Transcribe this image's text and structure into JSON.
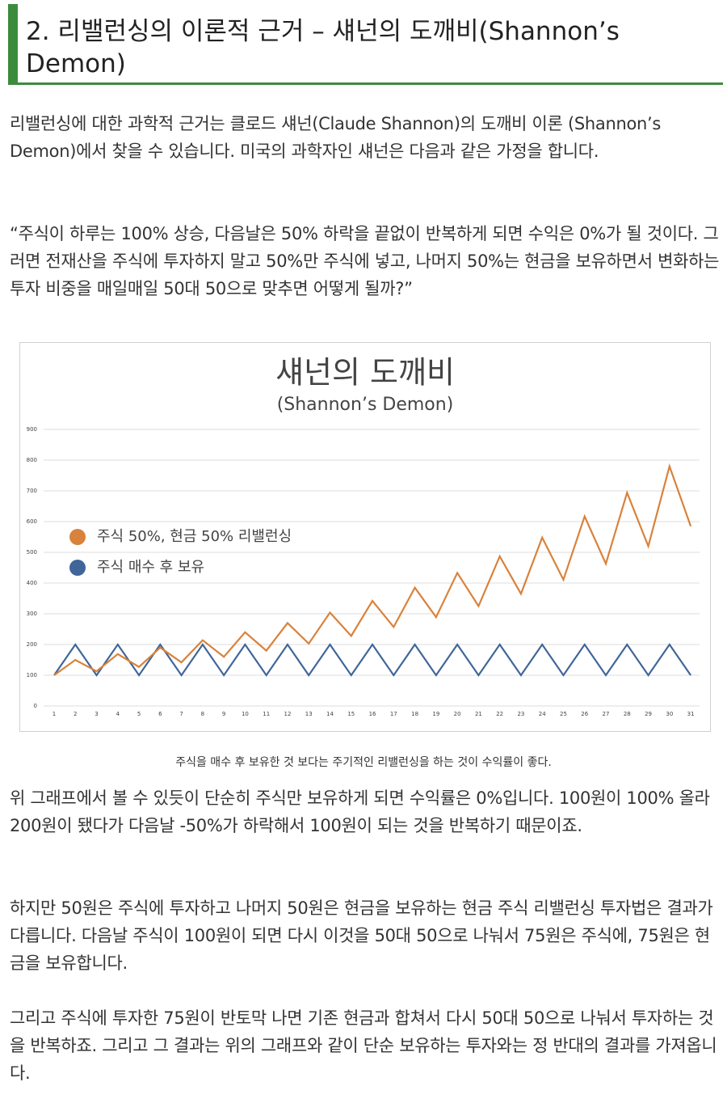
{
  "header": {
    "title": "2. 리밸런싱의 이론적 근거 – 섀넌의 도깨비(Shannon’s Demon)"
  },
  "paragraphs": [
    "리밸런싱에 대한 과학적 근거는 클로드 섀넌(Claude Shannon)의 도깨비 이론 (Shannon’s Demon)에서 찾을 수 있습니다. 미국의 과학자인 섀넌은  다음과 같은 가정을 합니다.",
    "“주식이 하루는 100% 상승, 다음날은 50% 하락을 끝없이 반복하게 되면 수익은 0%가 될 것이다. 그러면 전재산을 주식에 투자하지 말고 50%만 주식에 넣고, 나머지 50%는 현금을 보유하면서 변화하는 투자 비중을 매일매일 50대 50으로 맞추면 어떻게 될까?”"
  ],
  "chart_data": {
    "type": "line",
    "title": "섀넌의 도깨비",
    "subtitle": "(Shannon’s Demon)",
    "categories": [
      "1",
      "2",
      "3",
      "4",
      "5",
      "6",
      "7",
      "8",
      "9",
      "10",
      "11",
      "12",
      "13",
      "14",
      "15",
      "16",
      "17",
      "18",
      "19",
      "20",
      "21",
      "22",
      "23",
      "24",
      "25",
      "26",
      "27",
      "28",
      "29",
      "30",
      "31"
    ],
    "series": [
      {
        "name": "주식 50%, 현금 50% 리밸런싱",
        "color": "#d9823b",
        "values": [
          100,
          150,
          113,
          169,
          127,
          190,
          142,
          214,
          160,
          240,
          180,
          270,
          203,
          304,
          228,
          342,
          257,
          385,
          289,
          433,
          325,
          487,
          365,
          548,
          411,
          617,
          463,
          694,
          520,
          780,
          585
        ]
      },
      {
        "name": "주식 매수 후 보유",
        "color": "#3f6599",
        "values": [
          100,
          200,
          100,
          200,
          100,
          200,
          100,
          200,
          100,
          200,
          100,
          200,
          100,
          200,
          100,
          200,
          100,
          200,
          100,
          200,
          100,
          200,
          100,
          200,
          100,
          200,
          100,
          200,
          100,
          200,
          100
        ]
      }
    ],
    "ylim": [
      0,
      900
    ],
    "yticks": [
      0,
      100,
      200,
      300,
      400,
      500,
      600,
      700,
      800,
      900
    ],
    "grid": true,
    "legend": "left"
  },
  "caption": "주식을 매수 후 보유한 것 보다는 주기적인 리밸런싱을 하는 것이 수익률이 좋다.",
  "paragraphs_after": [
    "위 그래프에서 볼 수 있듯이 단순히 주식만 보유하게 되면 수익률은 0%입니다. 100원이 100% 올라 200원이 됐다가 다음날 -50%가 하락해서 100원이 되는 것을 반복하기 때문이죠.",
    "하지만 50원은 주식에 투자하고 나머지 50원은 현금을 보유하는 현금 주식 리밸런싱 투자법은 결과가 다릅니다. 다음날 주식이 100원이 되면 다시 이것을 50대 50으로 나눠서 75원은 주식에, 75원은 현금을 보유합니다.",
    "그리고 주식에 투자한 75원이 반토막 나면 기존 현금과 합쳐서 다시 50대 50으로 나눠서 투자하는 것을 반복하죠. 그리고 그 결과는 위의 그래프와 같이 단순 보유하는 투자와는 정 반대의 결과를 가져옵니다."
  ]
}
